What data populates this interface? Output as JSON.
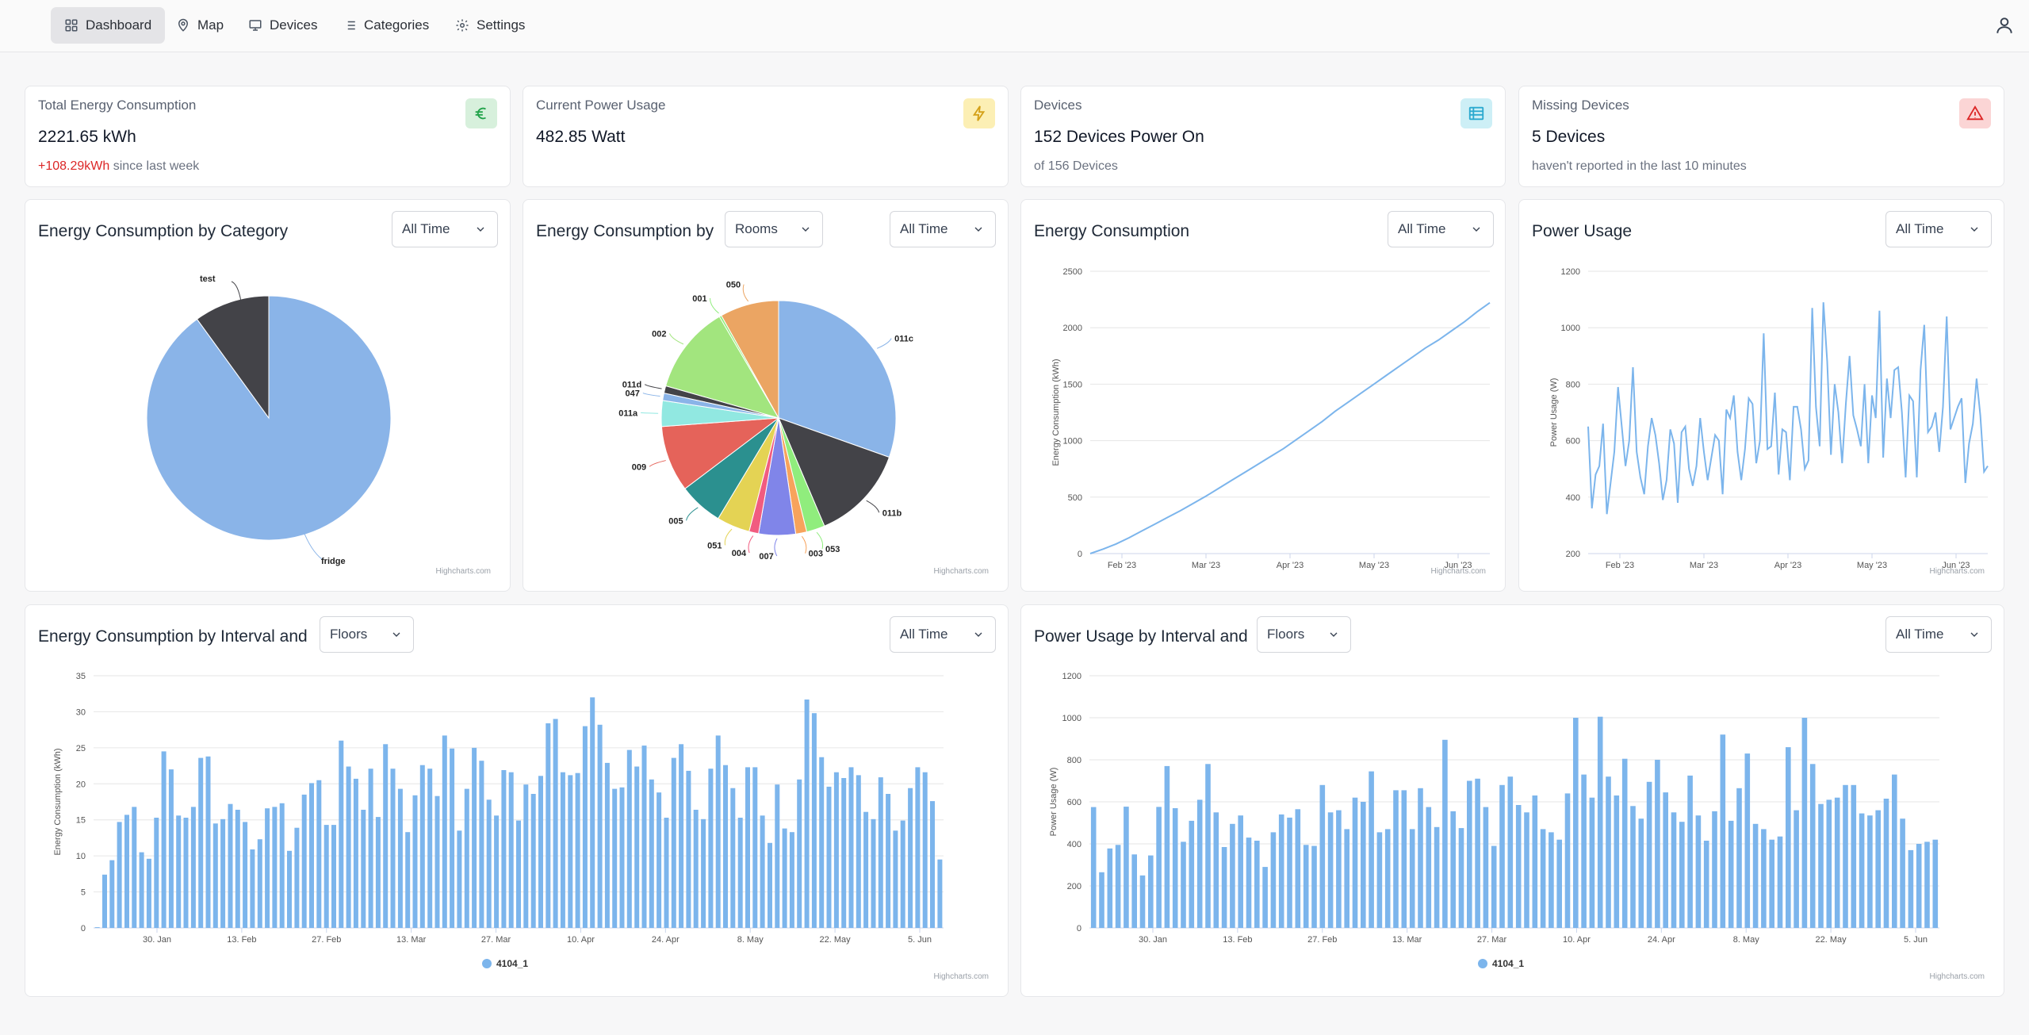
{
  "nav": {
    "items": [
      {
        "label": "Dashboard",
        "icon": "grid-icon",
        "active": true
      },
      {
        "label": "Map",
        "icon": "map-pin-icon"
      },
      {
        "label": "Devices",
        "icon": "monitor-icon"
      },
      {
        "label": "Categories",
        "icon": "list-icon"
      },
      {
        "label": "Settings",
        "icon": "gear-icon"
      }
    ],
    "user_icon": "user-icon"
  },
  "stats": [
    {
      "title": "Total Energy Consumption",
      "value": "2221.65 kWh",
      "delta": "+108.29kWh",
      "sub": " since last week",
      "icon": "euro-icon",
      "icon_bg": "#d7f0dc",
      "icon_color": "#22a34a"
    },
    {
      "title": "Current Power Usage",
      "value": "482.85 Watt",
      "icon": "lightning-icon",
      "icon_bg": "#fcefb4",
      "icon_color": "#d4a017"
    },
    {
      "title": "Devices",
      "value": "152 Devices Power On",
      "sub": "of 156 Devices",
      "icon": "list-icon",
      "icon_bg": "#cdeff6",
      "icon_color": "#2ba9cf"
    },
    {
      "title": "Missing Devices",
      "value": "5 Devices",
      "sub": "haven't reported in the last 10 minutes",
      "icon": "warning-icon",
      "icon_bg": "#fbd5d5",
      "icon_color": "#dc2626"
    }
  ],
  "panels": {
    "category": {
      "title": "Energy Consumption by Category",
      "range": "All Time"
    },
    "rooms": {
      "title": "Energy Consumption by",
      "group": "Rooms",
      "range": "All Time"
    },
    "energy": {
      "title": "Energy Consumption",
      "range": "All Time"
    },
    "power": {
      "title": "Power Usage",
      "range": "All Time"
    },
    "energy_interval": {
      "title": "Energy Consumption by Interval and",
      "group": "Floors",
      "range": "All Time"
    },
    "power_interval": {
      "title": "Power Usage by Interval and",
      "group": "Floors",
      "range": "All Time"
    }
  },
  "credit": "Highcharts.com",
  "colors": {
    "accent": "#8ab4e8",
    "dark": "#434348"
  },
  "chart_data": [
    {
      "type": "pie",
      "title": "Energy Consumption by Category",
      "slices": [
        {
          "name": "fridge",
          "value": 90,
          "color": "#8ab4e8"
        },
        {
          "name": "test",
          "value": 10,
          "color": "#434348"
        }
      ]
    },
    {
      "type": "pie",
      "title": "Energy Consumption by Rooms",
      "slices": [
        {
          "name": "011c",
          "value": 30,
          "color": "#8ab4e8"
        },
        {
          "name": "011b",
          "value": 13,
          "color": "#434348"
        },
        {
          "name": "053",
          "value": 2.5,
          "color": "#90ed7d"
        },
        {
          "name": "003",
          "value": 1.5,
          "color": "#f7a35c"
        },
        {
          "name": "007",
          "value": 5,
          "color": "#8085e9"
        },
        {
          "name": "004",
          "value": 1.3,
          "color": "#f15c80"
        },
        {
          "name": "051",
          "value": 4.5,
          "color": "#e4d354"
        },
        {
          "name": "005",
          "value": 6,
          "color": "#2b908f"
        },
        {
          "name": "009",
          "value": 9,
          "color": "#e5635a"
        },
        {
          "name": "011a",
          "value": 3.5,
          "color": "#91e8e1"
        },
        {
          "name": "047",
          "value": 1,
          "color": "#8ab4e8"
        },
        {
          "name": "011d",
          "value": 1,
          "color": "#434348"
        },
        {
          "name": "002",
          "value": 12,
          "color": "#a2e57e"
        },
        {
          "name": "001",
          "value": 0.3,
          "color": "#90ed7d"
        },
        {
          "name": "050",
          "value": 8,
          "color": "#eba563"
        }
      ]
    },
    {
      "type": "line",
      "title": "Energy Consumption",
      "ylabel": "Energy Consumption (kWh)",
      "xticks": [
        "Feb '23",
        "Mar '23",
        "Apr '23",
        "May '23",
        "Jun '23"
      ],
      "yticks": [
        0,
        500,
        1000,
        1500,
        2000,
        2500
      ],
      "ylim": [
        0,
        2500
      ],
      "values": [
        0,
        40,
        85,
        140,
        200,
        260,
        320,
        380,
        445,
        510,
        580,
        650,
        720,
        790,
        860,
        930,
        1010,
        1090,
        1170,
        1260,
        1340,
        1420,
        1500,
        1580,
        1660,
        1740,
        1820,
        1890,
        1970,
        2050,
        2140,
        2221
      ]
    },
    {
      "type": "line",
      "title": "Power Usage",
      "ylabel": "Power Usage (W)",
      "xticks": [
        "Feb '23",
        "Mar '23",
        "Apr '23",
        "May '23",
        "Jun '23"
      ],
      "yticks": [
        200,
        400,
        600,
        800,
        1000,
        1200
      ],
      "ylim": [
        200,
        1200
      ],
      "values": [
        650,
        360,
        480,
        510,
        660,
        340,
        450,
        560,
        790,
        650,
        510,
        600,
        860,
        560,
        470,
        410,
        580,
        680,
        620,
        520,
        390,
        460,
        640,
        590,
        380,
        630,
        650,
        500,
        440,
        510,
        680,
        560,
        460,
        540,
        620,
        600,
        410,
        710,
        680,
        760,
        560,
        460,
        570,
        750,
        730,
        520,
        600,
        980,
        570,
        580,
        770,
        480,
        640,
        630,
        460,
        720,
        720,
        640,
        500,
        530,
        1070,
        720,
        580,
        1090,
        880,
        550,
        800,
        700,
        520,
        730,
        900,
        690,
        640,
        580,
        800,
        520,
        760,
        680,
        1060,
        540,
        820,
        680,
        850,
        860,
        700,
        470,
        760,
        740,
        470,
        850,
        1010,
        630,
        650,
        700,
        560,
        720,
        1040,
        640,
        680,
        720,
        750,
        450,
        590,
        660,
        820,
        690,
        490,
        510
      ]
    },
    {
      "type": "bar",
      "title": "Energy Consumption by Interval and Floors",
      "ylabel": "Energy Consumption (kWh)",
      "series": [
        {
          "name": "4104_1",
          "values": [
            0.1,
            7.4,
            9.4,
            14.7,
            15.7,
            16.8,
            10.5,
            9.6,
            15.3,
            24.5,
            22.0,
            15.6,
            15.3,
            16.8,
            23.6,
            23.8,
            14.5,
            15.1,
            17.2,
            16.4,
            14.7,
            10.9,
            12.3,
            16.6,
            16.8,
            17.3,
            10.7,
            13.9,
            18.5,
            20.1,
            20.5,
            14.3,
            14.3,
            26.0,
            22.4,
            20.7,
            16.4,
            22.1,
            15.4,
            25.5,
            22.1,
            19.3,
            13.3,
            18.4,
            22.6,
            22.1,
            18.3,
            26.7,
            24.9,
            13.5,
            19.3,
            25.0,
            23.2,
            17.8,
            15.6,
            21.9,
            21.6,
            14.9,
            19.9,
            18.6,
            21.1,
            28.4,
            29.0,
            21.6,
            21.2,
            21.5,
            28.0,
            32.0,
            28.2,
            22.9,
            19.3,
            19.5,
            24.7,
            22.4,
            25.3,
            20.6,
            18.8,
            15.3,
            23.6,
            25.5,
            21.8,
            16.4,
            15.1,
            22.1,
            26.7,
            22.6,
            19.4,
            15.3,
            22.3,
            22.3,
            15.6,
            11.8,
            19.9,
            13.8,
            13.3,
            20.6,
            31.7,
            29.8,
            23.7,
            19.6,
            21.6,
            20.8,
            22.3,
            21.2,
            16.1,
            15.1,
            20.9,
            18.6,
            13.5,
            14.9,
            19.4,
            22.3,
            21.6,
            17.6,
            9.5
          ]
        }
      ],
      "xticks": [
        "30. Jan",
        "13. Feb",
        "27. Feb",
        "13. Mar",
        "27. Mar",
        "10. Apr",
        "24. Apr",
        "8. May",
        "22. May",
        "5. Jun"
      ],
      "yticks": [
        0,
        5,
        10,
        15,
        20,
        25,
        30,
        35
      ],
      "ylim": [
        0,
        35
      ]
    },
    {
      "type": "bar",
      "title": "Power Usage by Interval and Floors",
      "ylabel": "Power Usage (W)",
      "series": [
        {
          "name": "4104_1",
          "values": [
            575,
            265,
            378,
            395,
            577,
            350,
            250,
            345,
            576,
            770,
            570,
            410,
            510,
            610,
            780,
            550,
            385,
            495,
            535,
            430,
            415,
            290,
            455,
            540,
            525,
            565,
            395,
            390,
            680,
            550,
            560,
            470,
            620,
            600,
            745,
            455,
            470,
            655,
            655,
            470,
            665,
            575,
            480,
            895,
            555,
            475,
            700,
            710,
            575,
            390,
            680,
            720,
            585,
            550,
            630,
            470,
            455,
            420,
            640,
            1000,
            730,
            620,
            1005,
            720,
            630,
            805,
            580,
            520,
            695,
            800,
            645,
            550,
            505,
            725,
            535,
            415,
            555,
            920,
            510,
            665,
            830,
            495,
            470,
            420,
            435,
            860,
            560,
            1000,
            780,
            590,
            610,
            620,
            680,
            680,
            545,
            535,
            560,
            615,
            730,
            520,
            370,
            400,
            410,
            420
          ]
        }
      ],
      "xticks": [
        "30. Jan",
        "13. Feb",
        "27. Feb",
        "13. Mar",
        "27. Mar",
        "10. Apr",
        "24. Apr",
        "8. May",
        "22. May",
        "5. Jun"
      ],
      "yticks": [
        0,
        200,
        400,
        600,
        800,
        1000,
        1200
      ],
      "ylim": [
        0,
        1200
      ]
    }
  ]
}
